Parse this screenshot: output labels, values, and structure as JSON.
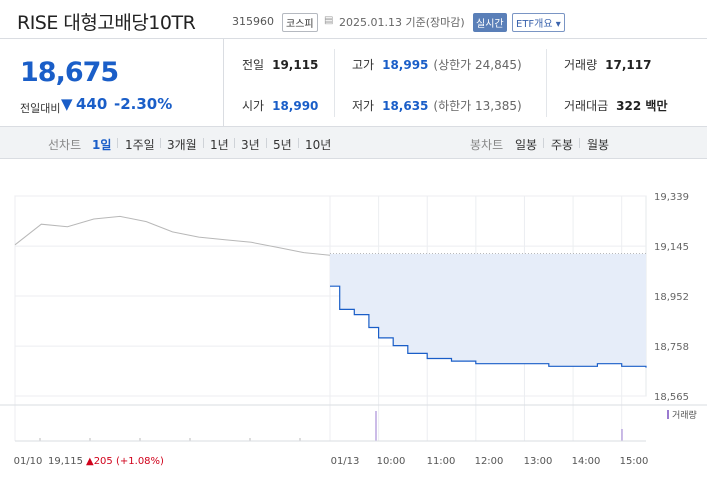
{
  "header": {
    "title": "RISE 대형고배당10TR",
    "code": "315960",
    "market": "코스피",
    "date_label": "2025.01.13 기준(장마감)",
    "realtime_badge": "실시간",
    "etf_button": "ETF개요 ▾"
  },
  "quote": {
    "price": "18,675",
    "change_label": "전일대비",
    "change_arrow": "▼",
    "change": "440",
    "change_pct": "-2.30%",
    "prev_label": "전일",
    "prev": "19,115",
    "open_label": "시가",
    "open": "18,990",
    "high_label": "고가",
    "high": "18,995",
    "upper_limit": "(상한가 24,845)",
    "low_label": "저가",
    "low": "18,635",
    "lower_limit": "(하한가 13,385)",
    "volume_label": "거래량",
    "volume": "17,117",
    "amount_label": "거래대금",
    "amount": "322 백만"
  },
  "line_tabs": {
    "label": "선차트",
    "items": [
      "1일",
      "1주일",
      "3개월",
      "1년",
      "3년",
      "5년",
      "10년"
    ],
    "active": "1일"
  },
  "candle_tabs": {
    "label": "봉차트",
    "items": [
      "일봉",
      "주봉",
      "월봉"
    ]
  },
  "chart_data": {
    "type": "line",
    "y_ticks": [
      "19,339",
      "19,145",
      "18,952",
      "18,758",
      "18,565"
    ],
    "ylim": [
      18565,
      19339
    ],
    "prev_close": 19115,
    "x_labels": [
      "01/10",
      "01/13",
      "10:00",
      "11:00",
      "12:00",
      "13:00",
      "14:00",
      "15:00"
    ],
    "volume_label": "거래량",
    "prev_day_summary": {
      "date": "01/10",
      "close": "19,115",
      "change": "▲205",
      "pct": "(+1.08%)"
    },
    "series": [
      {
        "name": "01/10",
        "x": [
          0,
          0.5,
          1,
          1.5,
          2,
          2.5,
          3,
          3.5,
          4,
          4.5,
          5,
          5.5,
          6
        ],
        "y": [
          19150,
          19230,
          19220,
          19250,
          19260,
          19240,
          19200,
          19180,
          19170,
          19160,
          19140,
          19120,
          19110
        ]
      },
      {
        "name": "01/13",
        "x": [
          9,
          9.2,
          9.5,
          9.8,
          10,
          10.3,
          10.6,
          11,
          11.5,
          12,
          12.5,
          13,
          13.5,
          14,
          14.5,
          15,
          15.5
        ],
        "y": [
          18990,
          18900,
          18880,
          18830,
          18790,
          18760,
          18730,
          18710,
          18700,
          18690,
          18690,
          18690,
          18680,
          18680,
          18690,
          18680,
          18675
        ]
      }
    ],
    "colors": {
      "today": "#1a5ec8",
      "today_fill": "#e6edf9",
      "prev": "#b8b8b8",
      "prev_close_line": "#7a7a7a",
      "up": "#d0021b",
      "volume": "#9a7ad0"
    }
  }
}
